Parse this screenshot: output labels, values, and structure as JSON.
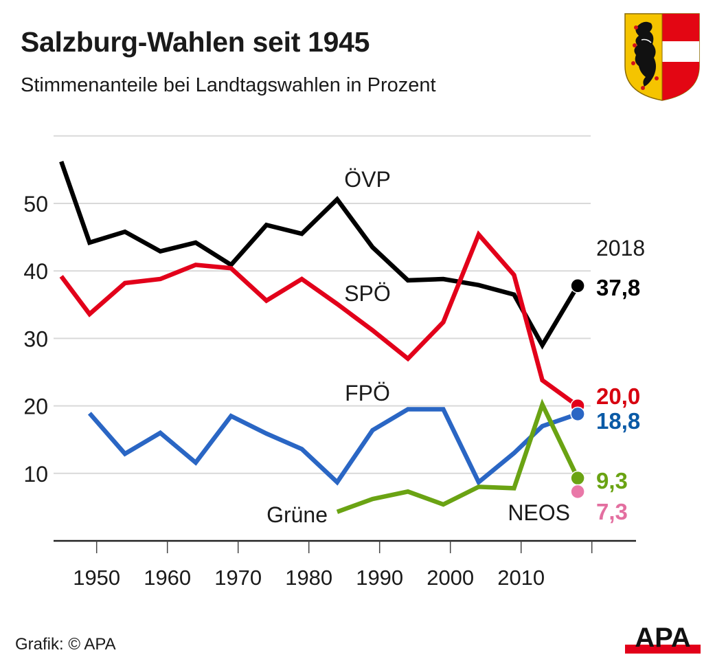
{
  "header": {
    "title": "Salzburg-Wahlen seit 1945",
    "subtitle": "Stimmenanteile bei Landtagswahlen in Prozent"
  },
  "footer": {
    "credit": "Grafik: © APA",
    "logo_text": "APA"
  },
  "crest": {
    "icon": "salzburg-coat-of-arms-icon"
  },
  "chart_data": {
    "type": "line",
    "title": "Salzburg-Wahlen seit 1945",
    "subtitle": "Stimmenanteile bei Landtagswahlen in Prozent",
    "xlabel": "",
    "ylabel": "",
    "xlim": [
      1945,
      2020
    ],
    "ylim": [
      0,
      60
    ],
    "x_ticks": [
      1950,
      1960,
      1970,
      1980,
      1990,
      2000,
      2010,
      2020
    ],
    "x_tick_labels": [
      "1950",
      "1960",
      "1970",
      "1980",
      "1990",
      "2000",
      "2010",
      ""
    ],
    "y_ticks": [
      10,
      20,
      30,
      40,
      50,
      60
    ],
    "y_tick_labels": [
      "10",
      "20",
      "30",
      "40",
      "50",
      ""
    ],
    "grid": true,
    "end_year_label": "2018",
    "series": [
      {
        "name": "ÖVP",
        "color": "#000000",
        "label_color": "#000000",
        "x": [
          1945,
          1949,
          1954,
          1959,
          1964,
          1969,
          1974,
          1979,
          1984,
          1989,
          1994,
          1999,
          2004,
          2009,
          2013,
          2018
        ],
        "values": [
          56.2,
          44.2,
          45.8,
          42.9,
          44.2,
          40.9,
          46.8,
          45.5,
          50.6,
          43.5,
          38.6,
          38.8,
          37.9,
          36.5,
          29.0,
          37.8
        ],
        "end_label": "37,8"
      },
      {
        "name": "SPÖ",
        "color": "#e2001a",
        "label_color": "#d7000f",
        "x": [
          1945,
          1949,
          1954,
          1959,
          1964,
          1969,
          1974,
          1979,
          1984,
          1989,
          1994,
          1999,
          2004,
          2009,
          2013,
          2018
        ],
        "values": [
          39.2,
          33.6,
          38.2,
          38.8,
          40.9,
          40.4,
          35.6,
          38.8,
          35.1,
          31.2,
          27.0,
          32.4,
          45.4,
          39.4,
          23.8,
          20.0
        ],
        "end_label": "20,0"
      },
      {
        "name": "FPÖ",
        "color": "#2a66c4",
        "label_color": "#0a5aa6",
        "x": [
          1949,
          1954,
          1959,
          1964,
          1969,
          1974,
          1979,
          1984,
          1989,
          1994,
          1999,
          2004,
          2009,
          2013,
          2018
        ],
        "values": [
          18.9,
          12.9,
          16.0,
          11.6,
          18.5,
          15.9,
          13.6,
          8.7,
          16.4,
          19.5,
          19.5,
          8.7,
          13.0,
          17.0,
          18.8
        ],
        "end_label": "18,8"
      },
      {
        "name": "Grüne",
        "color": "#6aa313",
        "label_color": "#6aa313",
        "x": [
          1984,
          1989,
          1994,
          1999,
          2004,
          2009,
          2013,
          2018
        ],
        "values": [
          4.3,
          6.2,
          7.3,
          5.4,
          8.0,
          7.8,
          20.2,
          9.3
        ],
        "end_label": "9,3"
      },
      {
        "name": "NEOS",
        "color": "#e978a8",
        "label_color": "#e36fa0",
        "x": [
          2018
        ],
        "values": [
          7.3
        ],
        "end_label": "7,3"
      }
    ]
  }
}
